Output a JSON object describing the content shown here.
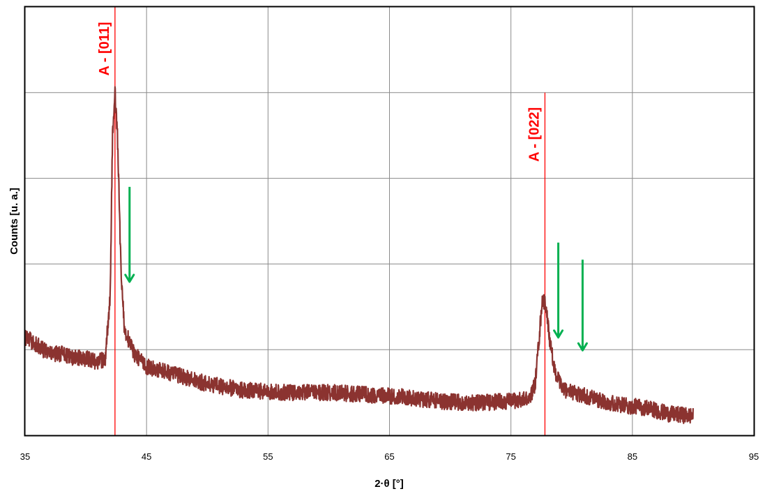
{
  "chart_data": {
    "type": "line",
    "title": "",
    "xlabel": "2·θ [°]",
    "ylabel": "Counts [u. a.]",
    "xlim": [
      35,
      95
    ],
    "ylim": [
      0,
      100
    ],
    "x_ticks": [
      35,
      45,
      55,
      65,
      75,
      85,
      95
    ],
    "x_tick_labels": [
      "35",
      "45",
      "55",
      "65",
      "75",
      "85",
      "95"
    ],
    "y_gridlines": [
      0,
      20,
      40,
      60,
      80,
      100
    ],
    "y_tick_labels_shown": false,
    "grid": true,
    "legend": "none",
    "series": [
      {
        "color": "#8B3330",
        "x_range": [
          35,
          90
        ],
        "points": [
          [
            35.0,
            23
          ],
          [
            36.0,
            21
          ],
          [
            37.0,
            19
          ],
          [
            38.0,
            19
          ],
          [
            39.0,
            18
          ],
          [
            40.0,
            18
          ],
          [
            41.0,
            17
          ],
          [
            41.6,
            18
          ],
          [
            42.0,
            32
          ],
          [
            42.2,
            70
          ],
          [
            42.4,
            80
          ],
          [
            42.6,
            70
          ],
          [
            42.9,
            38
          ],
          [
            43.2,
            24
          ],
          [
            43.6,
            22
          ],
          [
            44.0,
            19
          ],
          [
            45.0,
            16
          ],
          [
            47.0,
            14.5
          ],
          [
            50.0,
            12
          ],
          [
            53.0,
            10.5
          ],
          [
            56.0,
            10
          ],
          [
            60.0,
            10
          ],
          [
            63.0,
            9.5
          ],
          [
            66.0,
            9
          ],
          [
            69.0,
            8
          ],
          [
            72.0,
            7.5
          ],
          [
            75.0,
            8
          ],
          [
            76.5,
            8.5
          ],
          [
            77.0,
            12
          ],
          [
            77.3,
            22
          ],
          [
            77.6,
            32
          ],
          [
            77.9,
            30
          ],
          [
            78.2,
            22
          ],
          [
            78.6,
            15
          ],
          [
            79.2,
            11
          ],
          [
            80.0,
            10
          ],
          [
            82.0,
            8.5
          ],
          [
            84.0,
            7
          ],
          [
            86.0,
            6.5
          ],
          [
            88.0,
            5
          ],
          [
            90.0,
            4.5
          ]
        ]
      }
    ],
    "annotations": [
      {
        "text": "A - [011]",
        "x": 42.4,
        "line_top_y": 100,
        "color": "#FF0000"
      },
      {
        "text": "A - [022]",
        "x": 77.8,
        "line_top_y": 80,
        "color": "#FF0000"
      }
    ],
    "arrows": [
      {
        "x": 43.6,
        "y_from": 58,
        "y_to": 36,
        "color": "#00B050"
      },
      {
        "x": 78.9,
        "y_from": 45,
        "y_to": 23,
        "color": "#00B050"
      },
      {
        "x": 80.9,
        "y_from": 41,
        "y_to": 20,
        "color": "#00B050"
      }
    ]
  }
}
